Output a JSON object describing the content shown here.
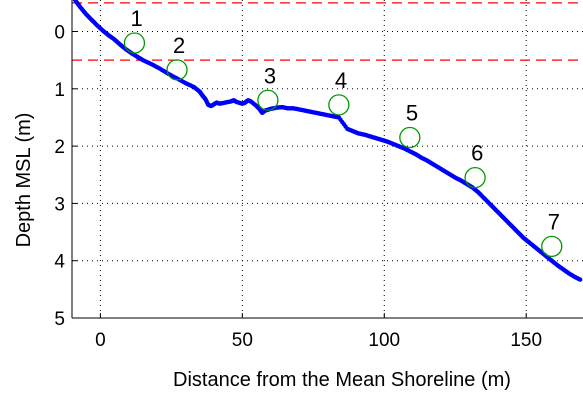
{
  "chart_data": {
    "type": "scatter",
    "xlabel": "Distance from the Mean Shoreline (m)",
    "ylabel": "Depth MSL (m)",
    "xlim": [
      -10,
      170
    ],
    "ylim": [
      -0.55,
      5
    ],
    "y_reversed": true,
    "grid": true,
    "grid_style": "dotted",
    "x_ticks": [
      0,
      50,
      100,
      150
    ],
    "y_ticks": [
      0,
      1,
      2,
      3,
      4,
      5
    ],
    "profile_color": "#0000ff",
    "marker_color": "#009900",
    "reference_line_color": "#ff0000",
    "reference_lines": [
      {
        "depth": -0.5
      },
      {
        "depth": 0.5
      }
    ],
    "series": [
      {
        "values": [
          {
            "x": -9.5,
            "y": -0.6
          },
          {
            "x": -8.5,
            "y": -0.52
          },
          {
            "x": -7,
            "y": -0.42
          },
          {
            "x": -5,
            "y": -0.3
          },
          {
            "x": -3,
            "y": -0.2
          },
          {
            "x": -1,
            "y": -0.1
          },
          {
            "x": 1,
            "y": -0.01
          },
          {
            "x": 3,
            "y": 0.07
          },
          {
            "x": 5,
            "y": 0.14
          },
          {
            "x": 7,
            "y": 0.23
          },
          {
            "x": 9,
            "y": 0.31
          },
          {
            "x": 11,
            "y": 0.38
          },
          {
            "x": 13,
            "y": 0.44
          },
          {
            "x": 15,
            "y": 0.5
          },
          {
            "x": 18,
            "y": 0.57
          },
          {
            "x": 21,
            "y": 0.65
          },
          {
            "x": 24,
            "y": 0.74
          },
          {
            "x": 27,
            "y": 0.82
          },
          {
            "x": 30,
            "y": 0.9
          },
          {
            "x": 33,
            "y": 0.97
          },
          {
            "x": 35,
            "y": 1.05
          },
          {
            "x": 36,
            "y": 1.12
          },
          {
            "x": 37,
            "y": 1.18
          },
          {
            "x": 38,
            "y": 1.28
          },
          {
            "x": 39,
            "y": 1.3
          },
          {
            "x": 40,
            "y": 1.27
          },
          {
            "x": 41,
            "y": 1.24
          },
          {
            "x": 42,
            "y": 1.26
          },
          {
            "x": 44,
            "y": 1.24
          },
          {
            "x": 46,
            "y": 1.22
          },
          {
            "x": 47,
            "y": 1.2
          },
          {
            "x": 48,
            "y": 1.23
          },
          {
            "x": 50,
            "y": 1.26
          },
          {
            "x": 51,
            "y": 1.24
          },
          {
            "x": 52,
            "y": 1.2
          },
          {
            "x": 53,
            "y": 1.22
          },
          {
            "x": 55,
            "y": 1.3
          },
          {
            "x": 56,
            "y": 1.35
          },
          {
            "x": 57,
            "y": 1.42
          },
          {
            "x": 58,
            "y": 1.38
          },
          {
            "x": 60,
            "y": 1.35
          },
          {
            "x": 62,
            "y": 1.33
          },
          {
            "x": 64,
            "y": 1.32
          },
          {
            "x": 66,
            "y": 1.34
          },
          {
            "x": 68,
            "y": 1.34
          },
          {
            "x": 70,
            "y": 1.36
          },
          {
            "x": 72,
            "y": 1.38
          },
          {
            "x": 74,
            "y": 1.4
          },
          {
            "x": 76,
            "y": 1.42
          },
          {
            "x": 78,
            "y": 1.44
          },
          {
            "x": 80,
            "y": 1.46
          },
          {
            "x": 82,
            "y": 1.48
          },
          {
            "x": 84,
            "y": 1.5
          },
          {
            "x": 87,
            "y": 1.7
          },
          {
            "x": 89,
            "y": 1.74
          },
          {
            "x": 91,
            "y": 1.78
          },
          {
            "x": 93,
            "y": 1.8
          },
          {
            "x": 95,
            "y": 1.83
          },
          {
            "x": 97,
            "y": 1.86
          },
          {
            "x": 99,
            "y": 1.89
          },
          {
            "x": 101,
            "y": 1.92
          },
          {
            "x": 103,
            "y": 1.96
          },
          {
            "x": 105,
            "y": 2.0
          },
          {
            "x": 107,
            "y": 2.04
          },
          {
            "x": 109,
            "y": 2.09
          },
          {
            "x": 111,
            "y": 2.14
          },
          {
            "x": 113,
            "y": 2.2
          },
          {
            "x": 115,
            "y": 2.25
          },
          {
            "x": 117,
            "y": 2.31
          },
          {
            "x": 119,
            "y": 2.37
          },
          {
            "x": 121,
            "y": 2.43
          },
          {
            "x": 123,
            "y": 2.49
          },
          {
            "x": 125,
            "y": 2.55
          },
          {
            "x": 127,
            "y": 2.6
          },
          {
            "x": 129,
            "y": 2.66
          },
          {
            "x": 131,
            "y": 2.72
          },
          {
            "x": 133,
            "y": 2.8
          },
          {
            "x": 135,
            "y": 2.9
          },
          {
            "x": 137,
            "y": 3.0
          },
          {
            "x": 139,
            "y": 3.1
          },
          {
            "x": 141,
            "y": 3.2
          },
          {
            "x": 143,
            "y": 3.3
          },
          {
            "x": 145,
            "y": 3.4
          },
          {
            "x": 147,
            "y": 3.5
          },
          {
            "x": 149,
            "y": 3.6
          },
          {
            "x": 151,
            "y": 3.68
          },
          {
            "x": 153,
            "y": 3.76
          },
          {
            "x": 155,
            "y": 3.84
          },
          {
            "x": 157,
            "y": 3.92
          },
          {
            "x": 159,
            "y": 4.0
          },
          {
            "x": 161,
            "y": 4.08
          },
          {
            "x": 163,
            "y": 4.15
          },
          {
            "x": 165,
            "y": 4.22
          },
          {
            "x": 167,
            "y": 4.28
          },
          {
            "x": 169,
            "y": 4.33
          }
        ]
      }
    ],
    "annotations": [
      {
        "label": "1",
        "x": 12,
        "y": 0.2
      },
      {
        "label": "2",
        "x": 27,
        "y": 0.67
      },
      {
        "label": "3",
        "x": 59,
        "y": 1.2
      },
      {
        "label": "4",
        "x": 84,
        "y": 1.28
      },
      {
        "label": "5",
        "x": 109,
        "y": 1.85
      },
      {
        "label": "6",
        "x": 132,
        "y": 2.55
      },
      {
        "label": "7",
        "x": 159,
        "y": 3.75
      }
    ]
  }
}
